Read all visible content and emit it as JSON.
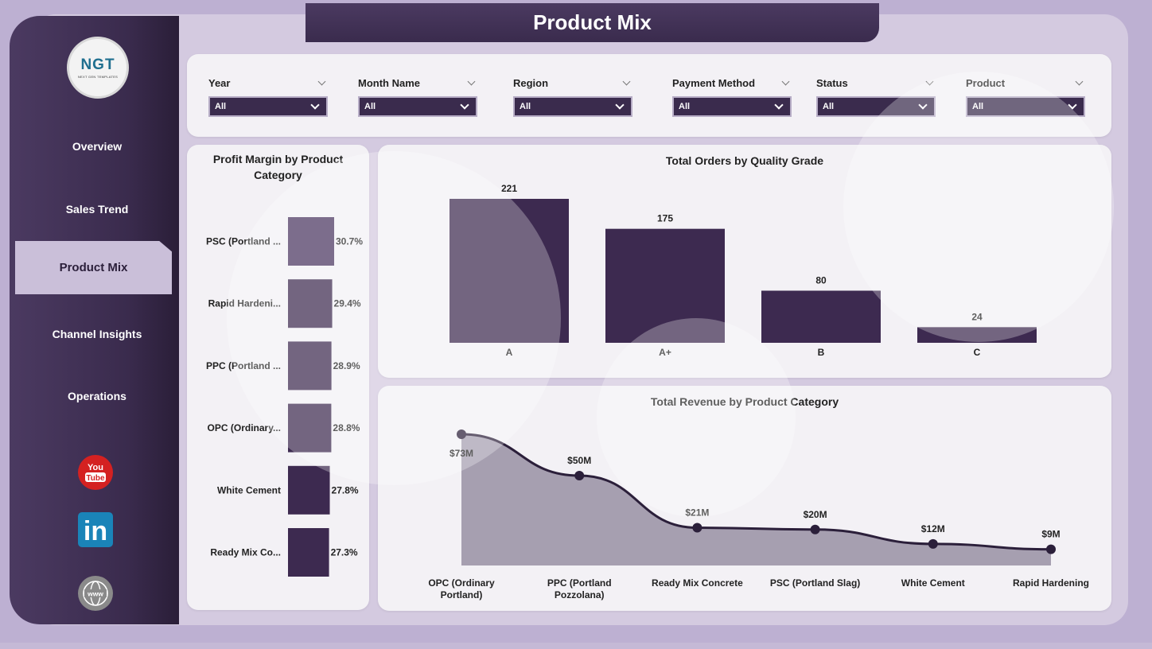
{
  "page": {
    "title": "Product Mix"
  },
  "logo": {
    "main": "NGT",
    "sub": "NEXT GEN TEMPLATES"
  },
  "nav": [
    {
      "label": "Overview",
      "active": false
    },
    {
      "label": "Sales Trend",
      "active": false
    },
    {
      "label": "Product Mix",
      "active": true
    },
    {
      "label": "Channel Insights",
      "active": false
    },
    {
      "label": "Operations",
      "active": false
    }
  ],
  "social": [
    {
      "icon": "youtube-icon",
      "text": "You Tube"
    },
    {
      "icon": "linkedin-icon",
      "text": "in"
    },
    {
      "icon": "globe-icon",
      "text": "www"
    }
  ],
  "filters": [
    {
      "label": "Year",
      "value": "All"
    },
    {
      "label": "Month Name",
      "value": "All"
    },
    {
      "label": "Region",
      "value": "All"
    },
    {
      "label": "Payment Method",
      "value": "All"
    },
    {
      "label": "Status",
      "value": "All"
    },
    {
      "label": "Product",
      "value": "All"
    }
  ],
  "colors": {
    "accent": "#3a2b4d",
    "bar": "#3d2a50",
    "area_fill": "#a69fb0",
    "line": "#2b1f3a",
    "panel": "#d4cae0"
  },
  "chart_data": [
    {
      "type": "bar",
      "orientation": "horizontal",
      "title": "Profit Margin by Product Category",
      "categories": [
        "PSC (Portland ...",
        "Rapid Hardeni...",
        "PPC (Portland ...",
        "OPC (Ordinary...",
        "White Cement",
        "Ready Mix Co..."
      ],
      "values": [
        30.7,
        29.4,
        28.9,
        28.8,
        27.8,
        27.3
      ],
      "data_labels": [
        "30.7%",
        "29.4%",
        "28.9%",
        "28.8%",
        "27.8%",
        "27.3%"
      ]
    },
    {
      "type": "bar",
      "title": "Total Orders by Quality Grade",
      "categories": [
        "A",
        "A+",
        "B",
        "C"
      ],
      "values": [
        221,
        175,
        80,
        24
      ],
      "data_labels": [
        "221",
        "175",
        "80",
        "24"
      ],
      "ylim": [
        0,
        221
      ]
    },
    {
      "type": "area",
      "title": "Total Revenue by Product Category",
      "categories": [
        "OPC (Ordinary Portland)",
        "PPC (Portland Pozzolana)",
        "Ready Mix Concrete",
        "PSC (Portland Slag)",
        "White Cement",
        "Rapid Hardening"
      ],
      "category_lines": [
        [
          "OPC (Ordinary",
          "Portland)"
        ],
        [
          "PPC (Portland",
          "Pozzolana)"
        ],
        [
          "Ready Mix Concrete"
        ],
        [
          "PSC (Portland Slag)"
        ],
        [
          "White Cement"
        ],
        [
          "Rapid Hardening"
        ]
      ],
      "values": [
        73,
        50,
        21,
        20,
        12,
        9
      ],
      "data_labels": [
        "$73M",
        "$50M",
        "$21M",
        "$20M",
        "$12M",
        "$9M"
      ],
      "unit": "$M"
    }
  ]
}
